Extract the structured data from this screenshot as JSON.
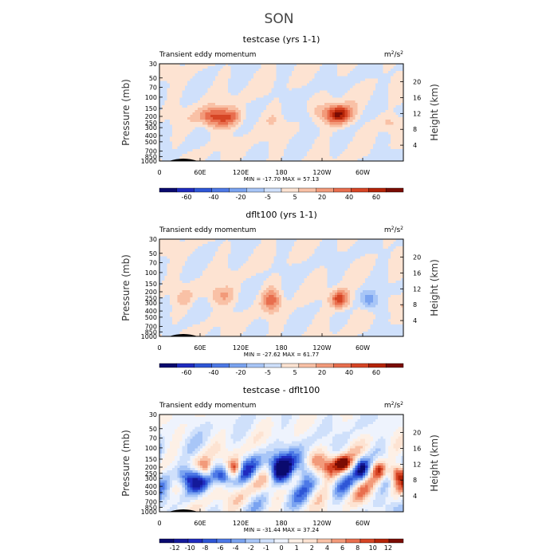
{
  "suptitle": "SON",
  "chart_data": [
    {
      "type": "heatmap",
      "title": "testcase (yrs 1-1)",
      "subtitle_left": "Transient eddy momentum",
      "units": "m",
      "units_sup": "2",
      "units_mid": "/s",
      "units_sup2": "2",
      "ylabel": "Pressure (mb)",
      "ylabel_right": "Height (km)",
      "x_ticks": [
        "0",
        "60E",
        "120E",
        "180",
        "120W",
        "60W"
      ],
      "y_ticks": [
        "30",
        "50",
        "70",
        "100",
        "150",
        "200",
        "250",
        "300",
        "400",
        "500",
        "700",
        "850",
        "1000"
      ],
      "y_ticks_right": [
        "20",
        "16",
        "12",
        "8",
        "4"
      ],
      "minmax": "MIN = -17.70   MAX =  57.13",
      "colorbar_labels": [
        "-60",
        "-40",
        "-20",
        "-5",
        "5",
        "20",
        "40",
        "60"
      ],
      "colorbar_colors": [
        "#0a0a6e",
        "#1f2bbf",
        "#2e56d6",
        "#4d79e6",
        "#7aa3f0",
        "#a8c6f7",
        "#cfe0fb",
        "#fde3d2",
        "#f9c1a6",
        "#f29a7a",
        "#e86e4e",
        "#d64525",
        "#b52408",
        "#7a0c04"
      ],
      "field_scale": 60
    },
    {
      "type": "heatmap",
      "title": "dflt100 (yrs 1-1)",
      "subtitle_left": "Transient eddy momentum",
      "units": "m",
      "units_sup": "2",
      "units_mid": "/s",
      "units_sup2": "2",
      "ylabel": "Pressure (mb)",
      "ylabel_right": "Height (km)",
      "x_ticks": [
        "0",
        "60E",
        "120E",
        "180",
        "120W",
        "60W"
      ],
      "y_ticks": [
        "30",
        "50",
        "70",
        "100",
        "150",
        "200",
        "250",
        "300",
        "400",
        "500",
        "700",
        "850",
        "1000"
      ],
      "y_ticks_right": [
        "20",
        "16",
        "12",
        "8",
        "4"
      ],
      "minmax": "MIN = -27.62   MAX =  61.77",
      "colorbar_labels": [
        "-60",
        "-40",
        "-20",
        "-5",
        "5",
        "20",
        "40",
        "60"
      ],
      "colorbar_colors": [
        "#0a0a6e",
        "#1f2bbf",
        "#2e56d6",
        "#4d79e6",
        "#7aa3f0",
        "#a8c6f7",
        "#cfe0fb",
        "#fde3d2",
        "#f9c1a6",
        "#f29a7a",
        "#e86e4e",
        "#d64525",
        "#b52408",
        "#7a0c04"
      ],
      "field_scale": 60
    },
    {
      "type": "heatmap",
      "title": "testcase - dflt100",
      "subtitle_left": "Transient eddy momentum",
      "units": "m",
      "units_sup": "2",
      "units_mid": "/s",
      "units_sup2": "2",
      "ylabel": "Pressure (mb)",
      "ylabel_right": "Height (km)",
      "x_ticks": [
        "0",
        "60E",
        "120E",
        "180",
        "120W",
        "60W"
      ],
      "y_ticks": [
        "30",
        "50",
        "70",
        "100",
        "150",
        "200",
        "250",
        "300",
        "400",
        "500",
        "700",
        "850",
        "1000"
      ],
      "y_ticks_right": [
        "20",
        "16",
        "12",
        "8",
        "4"
      ],
      "minmax": "MIN = -31.44   MAX =  37.24",
      "colorbar_labels": [
        "-12",
        "-10",
        "-8",
        "-6",
        "-4",
        "-2",
        "-1",
        "0",
        "1",
        "2",
        "4",
        "6",
        "8",
        "10",
        "12"
      ],
      "colorbar_colors": [
        "#0a0a6e",
        "#14199a",
        "#1f2bbf",
        "#2e56d6",
        "#4d79e6",
        "#7aa3f0",
        "#a8c6f7",
        "#cfe0fb",
        "#eef3fd",
        "#fdf0e6",
        "#fde3d2",
        "#f9c1a6",
        "#f29a7a",
        "#e86e4e",
        "#d64525",
        "#b52408",
        "#7a0c04"
      ],
      "field_scale": 12
    }
  ]
}
